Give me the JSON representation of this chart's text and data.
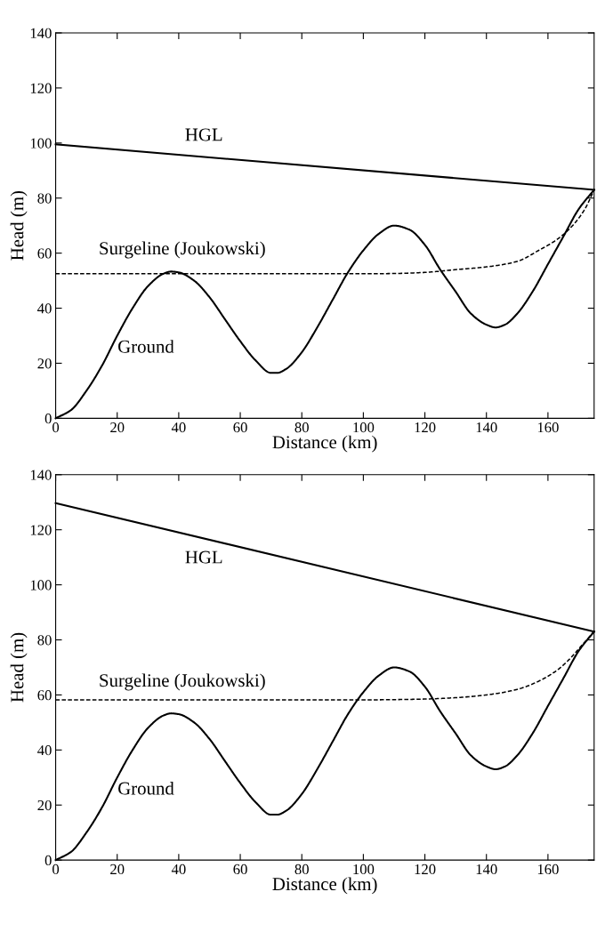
{
  "chart_data": [
    {
      "type": "line",
      "xlabel": "Distance (km)",
      "ylabel": "Head (m)",
      "xlim": [
        0,
        175
      ],
      "ylim": [
        0,
        140
      ],
      "xticks": [
        0,
        20,
        40,
        60,
        80,
        100,
        120,
        140,
        160
      ],
      "yticks": [
        0,
        20,
        40,
        60,
        80,
        100,
        120,
        140
      ],
      "grid": false,
      "legend": false,
      "series": [
        {
          "color": "#000000",
          "line_style": "solid",
          "x": [
            0,
            175
          ],
          "values": [
            99.5,
            83
          ]
        },
        {
          "color": "#000000",
          "line_style": "dashed",
          "x": [
            0,
            20,
            40,
            60,
            80,
            100,
            110,
            120,
            130,
            140,
            150,
            157,
            163,
            168,
            172,
            175
          ],
          "values": [
            52.5,
            52.5,
            52.5,
            52.5,
            52.5,
            52.5,
            52.6,
            53,
            54,
            55,
            57,
            61,
            65,
            70,
            76,
            83
          ]
        },
        {
          "color": "#000000",
          "line_style": "solid",
          "x": [
            0,
            5,
            10,
            15,
            20,
            25,
            30,
            35,
            37.5,
            40,
            45,
            50,
            55,
            60,
            65,
            70,
            72,
            75,
            80,
            85,
            90,
            95,
            100,
            105,
            110,
            115,
            120,
            125,
            130,
            135,
            140,
            143,
            146,
            150,
            155,
            160,
            165,
            170,
            175
          ],
          "values": [
            0,
            3,
            10,
            19,
            30,
            40,
            48,
            52.5,
            53.3,
            53,
            50,
            44,
            36,
            28,
            21,
            16.5,
            16.5,
            18,
            24,
            33,
            43,
            53,
            61,
            67,
            70,
            68.5,
            63,
            54,
            46,
            38,
            34,
            33,
            34,
            38,
            46,
            56,
            66,
            76,
            83
          ]
        }
      ],
      "annotations": [
        "HGL",
        "Surgeline (Joukowski)",
        "Ground"
      ]
    },
    {
      "type": "line",
      "xlabel": "Distance (km)",
      "ylabel": "Head (m)",
      "xlim": [
        0,
        175
      ],
      "ylim": [
        0,
        140
      ],
      "xticks": [
        0,
        20,
        40,
        60,
        80,
        100,
        120,
        140,
        160
      ],
      "yticks": [
        0,
        20,
        40,
        60,
        80,
        100,
        120,
        140
      ],
      "grid": false,
      "legend": false,
      "series": [
        {
          "color": "#000000",
          "line_style": "solid",
          "x": [
            0,
            175
          ],
          "values": [
            129.7,
            83
          ]
        },
        {
          "color": "#000000",
          "line_style": "dashed",
          "x": [
            0,
            20,
            40,
            60,
            80,
            100,
            110,
            120,
            130,
            140,
            150,
            157,
            163,
            167,
            171,
            175
          ],
          "values": [
            58.2,
            58.2,
            58.2,
            58.2,
            58.2,
            58.2,
            58.3,
            58.5,
            59,
            60,
            62,
            65,
            69,
            73,
            78,
            83
          ]
        },
        {
          "color": "#000000",
          "line_style": "solid",
          "x": [
            0,
            5,
            10,
            15,
            20,
            25,
            30,
            35,
            37.5,
            40,
            45,
            50,
            55,
            60,
            65,
            70,
            72,
            75,
            80,
            85,
            90,
            95,
            100,
            105,
            110,
            115,
            120,
            125,
            130,
            135,
            140,
            143,
            146,
            150,
            155,
            160,
            165,
            170,
            175
          ],
          "values": [
            0,
            3,
            10,
            19,
            30,
            40,
            48,
            52.5,
            53.3,
            53,
            50,
            44,
            36,
            28,
            21,
            16.5,
            16.5,
            18,
            24,
            33,
            43,
            53,
            61,
            67,
            70,
            68.5,
            63,
            54,
            46,
            38,
            34,
            33,
            34,
            38,
            46,
            56,
            66,
            76,
            83
          ]
        }
      ],
      "annotations": [
        "HGL",
        "Surgeline (Joukowski)",
        "Ground"
      ]
    }
  ]
}
